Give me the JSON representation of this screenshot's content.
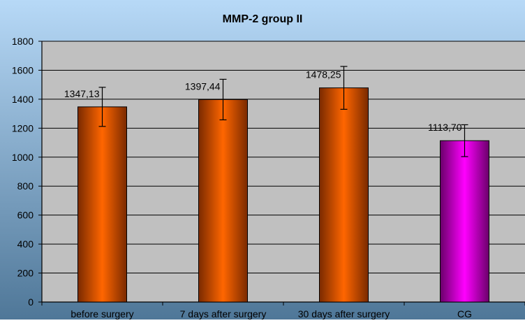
{
  "chart_data": {
    "type": "bar",
    "title": "MMP-2 group II",
    "xlabel": "",
    "ylabel": "",
    "categories": [
      "before surgery",
      "7 days after surgery",
      "30 days after surgery",
      "CG"
    ],
    "values": [
      1347.13,
      1397.44,
      1478.25,
      1113.7
    ],
    "value_labels": [
      "1347,13",
      "1397,44",
      "1478,25",
      "1113,70"
    ],
    "error": [
      135,
      140,
      148,
      110
    ],
    "ylim": [
      0,
      1800
    ],
    "yticks": [
      0,
      200,
      400,
      600,
      800,
      1000,
      1200,
      1400,
      1600,
      1800
    ],
    "ytick_labels": [
      "0",
      "200",
      "400",
      "600",
      "800",
      "1000",
      "1200",
      "1400",
      "1600",
      "1800"
    ],
    "grid": true,
    "legend": "none"
  },
  "colors": {
    "background_top": "#b7d9f7",
    "background_bottom": "#4f7798",
    "plot_area": "#c0c0c0",
    "bar_group": "#ff6600",
    "bar_group_dark": "#7a2a00",
    "bar_control": "#ff00ff",
    "bar_control_dark": "#6a006a",
    "gridline": "#000000"
  }
}
